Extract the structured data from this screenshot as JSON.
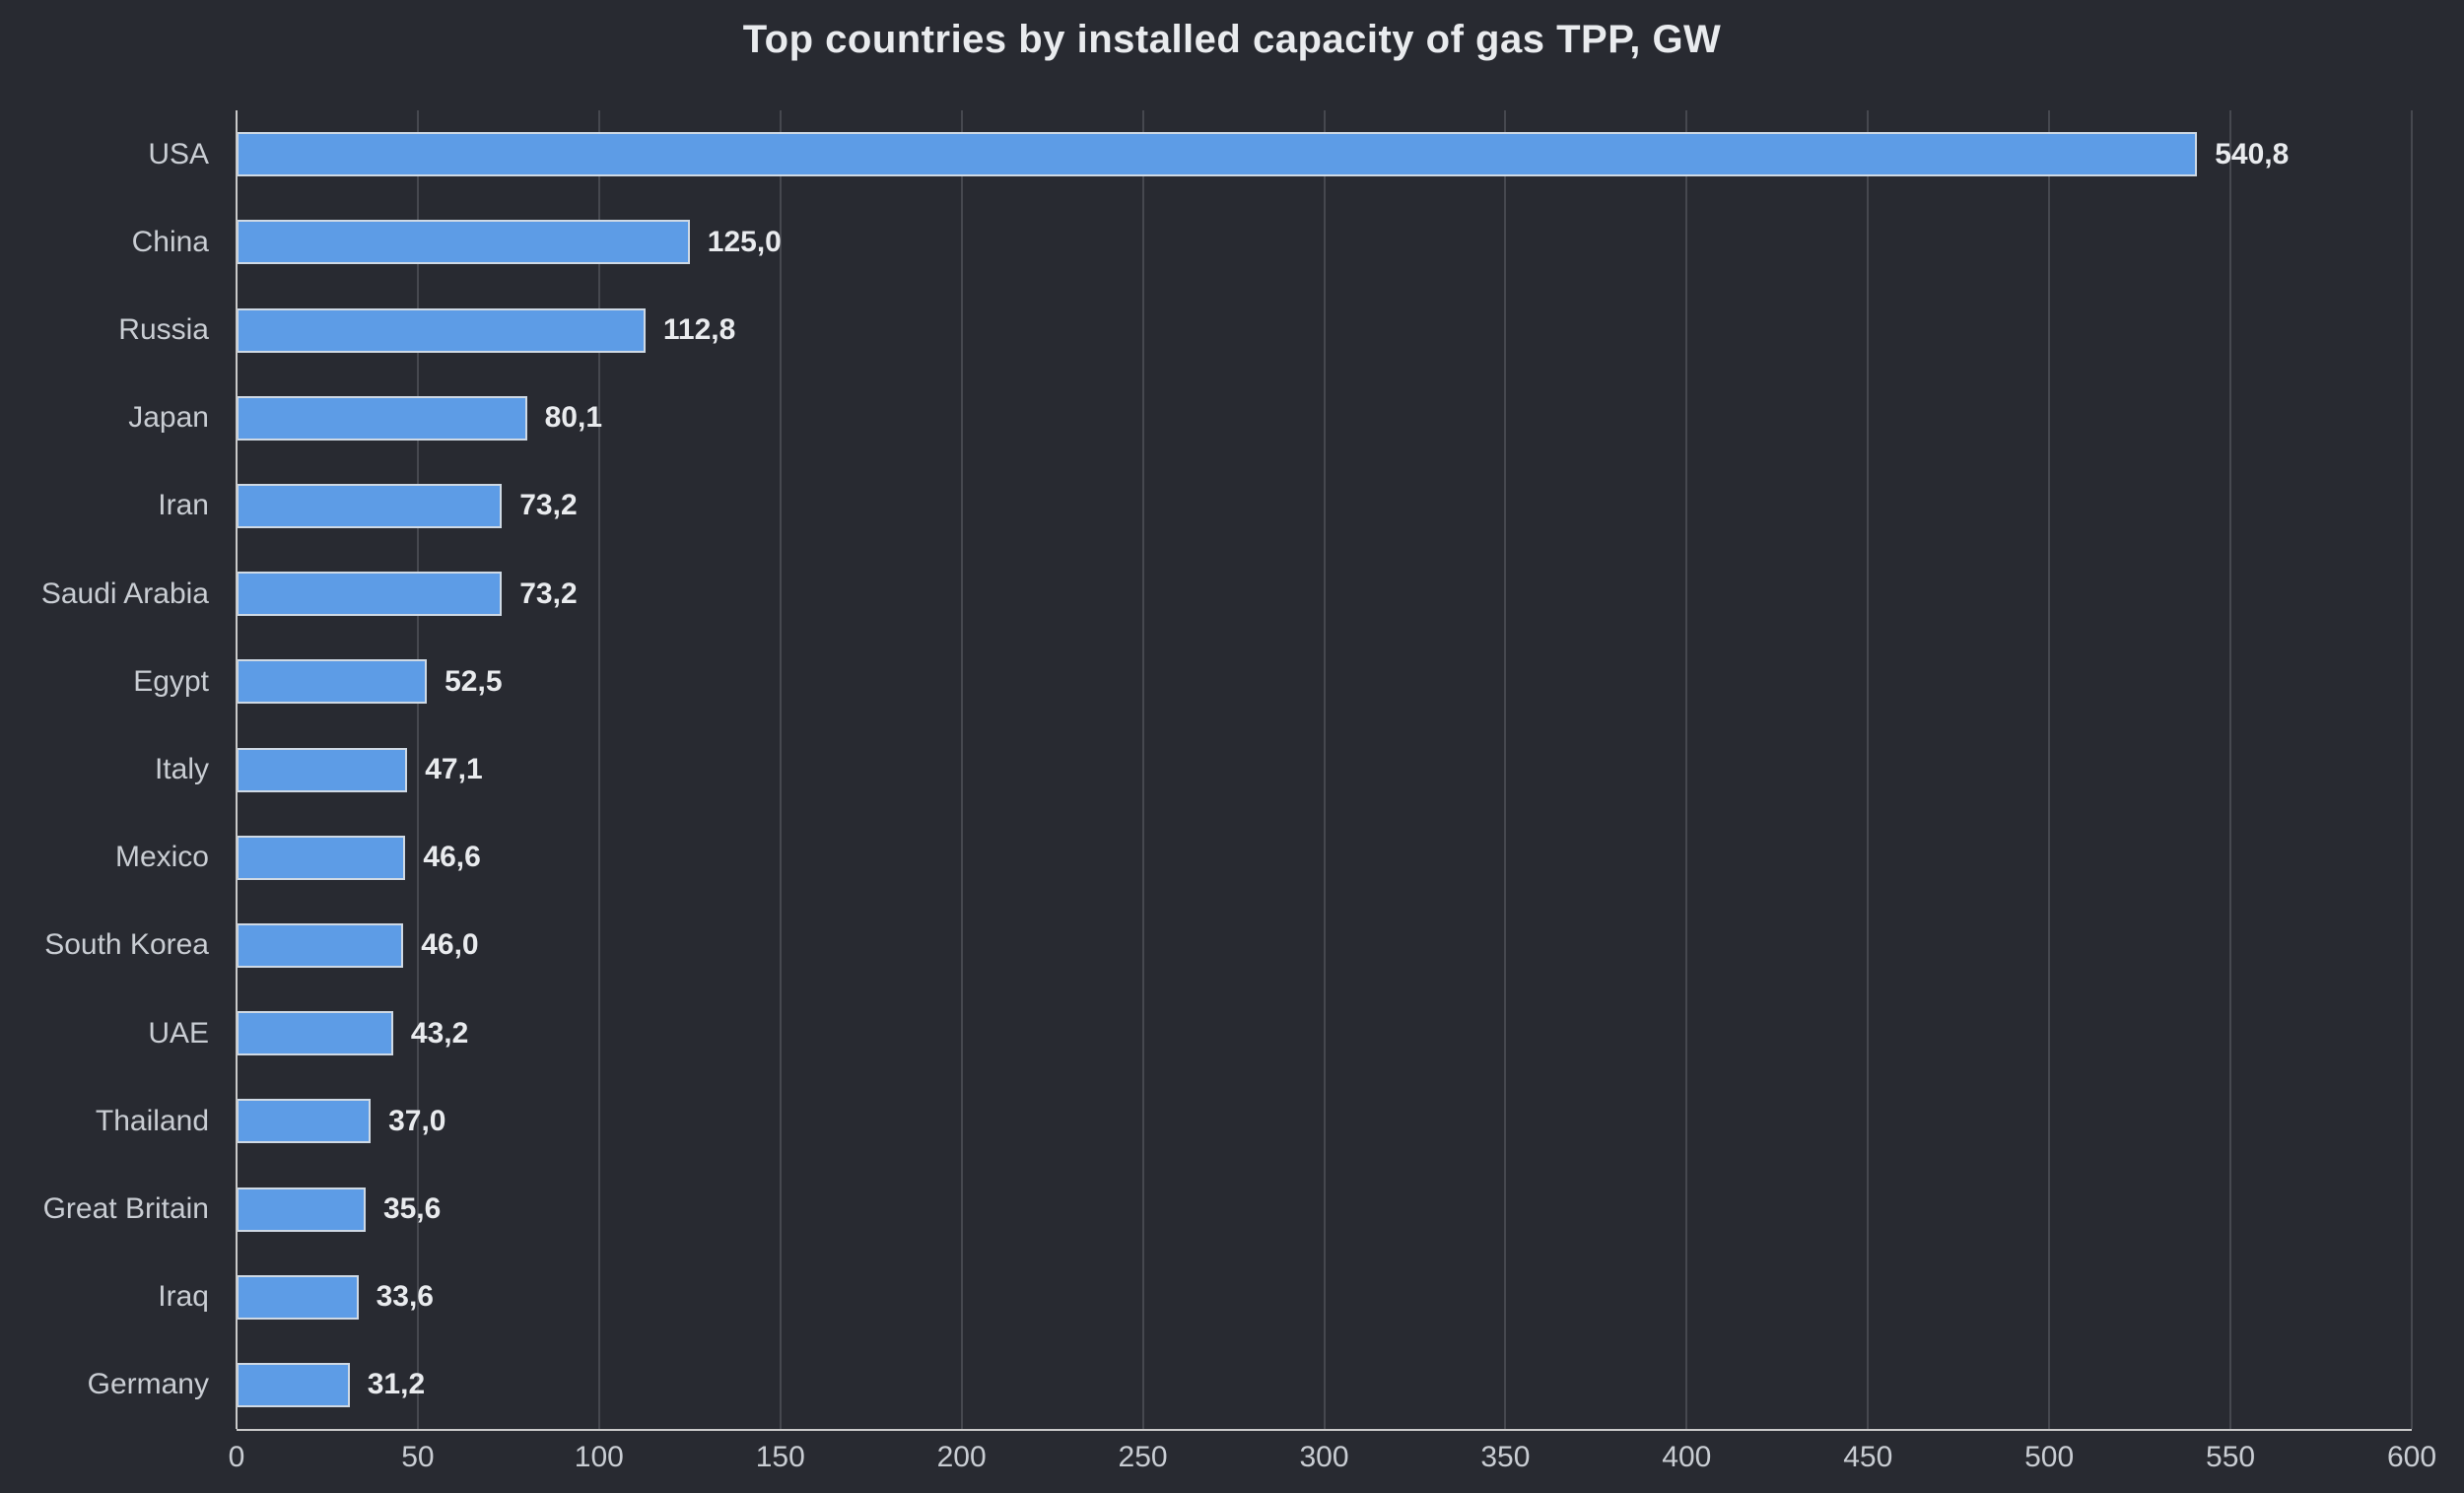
{
  "chart_data": {
    "type": "bar",
    "orientation": "horizontal",
    "title": "Top countries by installed capacity of gas TPP, GW",
    "categories": [
      "USA",
      "China",
      "Russia",
      "Japan",
      "Iran",
      "Saudi Arabia",
      "Egypt",
      "Italy",
      "Mexico",
      "South Korea",
      "UAE",
      "Thailand",
      "Great Britain",
      "Iraq",
      "Germany"
    ],
    "values": [
      540.8,
      125.0,
      112.8,
      80.1,
      73.2,
      73.2,
      52.5,
      47.1,
      46.6,
      46.0,
      43.2,
      37.0,
      35.6,
      33.6,
      31.2
    ],
    "value_labels": [
      "540,8",
      "125,0",
      "112,8",
      "80,1",
      "73,2",
      "73,2",
      "52,5",
      "47,1",
      "46,6",
      "46,0",
      "43,2",
      "37,0",
      "35,6",
      "33,6",
      "31,2"
    ],
    "xlabel": "",
    "ylabel": "",
    "xlim": [
      0,
      600
    ],
    "xticks": [
      0,
      50,
      100,
      150,
      200,
      250,
      300,
      350,
      400,
      450,
      500,
      550,
      600
    ],
    "grid": "vertical",
    "legend": "none",
    "colors": {
      "background": "#282a31",
      "bar_fill": "#5d9ce6",
      "bar_border": "#cfd9e4",
      "gridline": "#46484f",
      "axis_line": "#c9c9c9",
      "text": "#c9cdd3",
      "value_text": "#e9ebee",
      "title_text": "#e9ebee"
    }
  }
}
